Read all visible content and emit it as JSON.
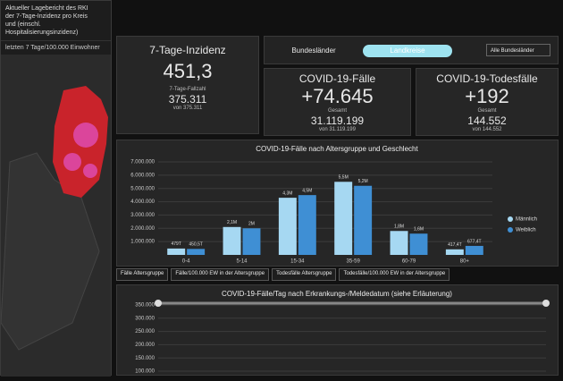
{
  "header": {
    "lines": [
      "Aktueller Lagebericht des RKI",
      "der 7-Tage-Inzidenz pro Kreis",
      "und (einschl. Hospitalisierungsinzidenz)"
    ],
    "map_subtitle": "letzten 7 Tage/100.000 Einwohner"
  },
  "tabs": [
    "Bundesländer",
    "Landkreise"
  ],
  "dropdown": "Alle Bundesländer",
  "cards": [
    {
      "title": "7-Tage-Inzidenz",
      "value": "451,3",
      "sub_label": "7-Tage-Fallzahl",
      "sub_value": "375.311",
      "sub_note": "von 375.311"
    },
    {
      "title": "COVID-19-Fälle",
      "value": "+74.645",
      "sub_label": "Gesamt",
      "sub_value": "31.119.199",
      "sub_note": "von 31.119.199"
    },
    {
      "title": "COVID-19-Todesfälle",
      "value": "+192",
      "sub_label": "Gesamt",
      "sub_value": "144.552",
      "sub_note": "von 144.552"
    }
  ],
  "age_chart": {
    "type": "bar",
    "title": "COVID-19-Fälle nach Altersgruppe und Geschlecht",
    "categories": [
      "0-4",
      "5-14",
      "15-34",
      "35-59",
      "60-79",
      "80+"
    ],
    "series": [
      {
        "name": "Männlich",
        "color": "#a6d8f2",
        "values": [
          479000,
          2100000,
          4300000,
          5500000,
          1800000,
          417400
        ],
        "value_labels": [
          "479T",
          "2,1M",
          "4,3M",
          "5,5M",
          "1,8M",
          "417,4T"
        ]
      },
      {
        "name": "Weiblich",
        "color": "#3f8fd4",
        "values": [
          450500,
          2000000,
          4500000,
          5200000,
          1600000,
          677400
        ],
        "value_labels": [
          "450,5T",
          "2M",
          "4,5M",
          "5,2M",
          "1,6M",
          "677,4T"
        ]
      }
    ],
    "ylim": [
      0,
      7000000
    ],
    "yticks": [
      {
        "value": 1000000,
        "label": "1.000.000"
      },
      {
        "value": 2000000,
        "label": "2.000.000"
      },
      {
        "value": 3000000,
        "label": "3.000.000"
      },
      {
        "value": 4000000,
        "label": "4.000.000"
      },
      {
        "value": 5000000,
        "label": "5.000.000"
      },
      {
        "value": 6000000,
        "label": "6.000.000"
      },
      {
        "value": 7000000,
        "label": "7.000.000"
      }
    ],
    "tabs": [
      "Fälle Altersgruppe",
      "Fälle/100.000 EW in der Altersgruppe",
      "Todesfälle Altersgruppe",
      "Todesfälle/100.000 EW in der Altersgruppe"
    ]
  },
  "daily_chart": {
    "type": "line",
    "title": "COVID-19-Fälle/Tag nach Erkrankungs-/Meldedatum (siehe Erläuterung)",
    "ylim": [
      100000,
      350000
    ],
    "yticks": [
      {
        "value": 100000,
        "label": "100.000"
      },
      {
        "value": 150000,
        "label": "150.000"
      },
      {
        "value": 200000,
        "label": "200.000"
      },
      {
        "value": 250000,
        "label": "250.000"
      },
      {
        "value": 300000,
        "label": "300.000"
      },
      {
        "value": 350000,
        "label": "350.000"
      }
    ]
  }
}
